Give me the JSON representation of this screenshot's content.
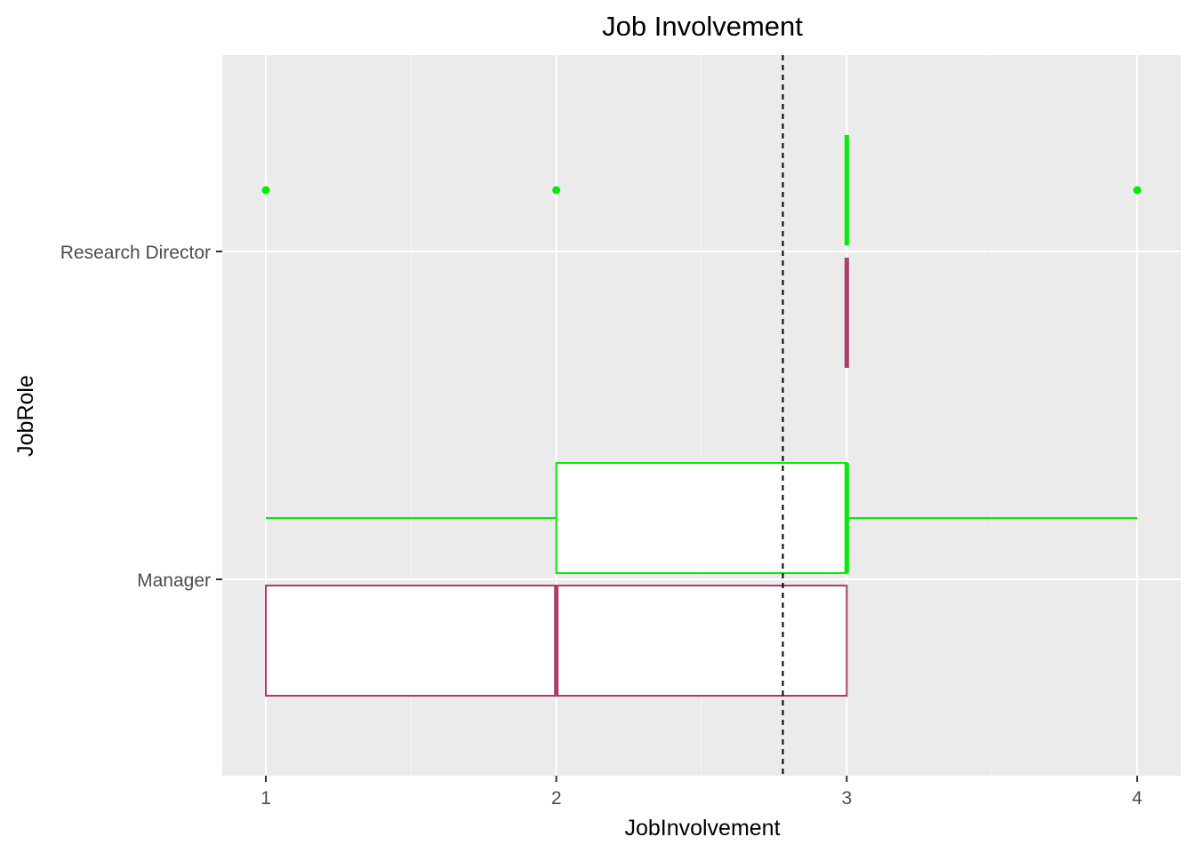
{
  "chart_data": {
    "type": "boxplot",
    "orientation": "horizontal",
    "title": "Job Involvement",
    "xlabel": "JobInvolvement",
    "ylabel": "JobRole",
    "xlim": [
      0.85,
      4.15
    ],
    "x_ticks": [
      "1",
      "2",
      "3",
      "4"
    ],
    "categories": [
      "Manager",
      "Research Director"
    ],
    "reference_line": {
      "x": 2.78,
      "style": "dashed",
      "color": "#000000"
    },
    "groups": [
      {
        "category": "Manager",
        "color": "#b03a6a",
        "offset": "lower",
        "stats": {
          "min": 1,
          "q1": 1,
          "median": 2,
          "q3": 3,
          "max": 3
        },
        "outliers": []
      },
      {
        "category": "Manager",
        "color": "#00ee00",
        "offset": "upper",
        "stats": {
          "min": 1,
          "q1": 2,
          "median": 3,
          "q3": 3,
          "max": 4
        },
        "outliers": []
      },
      {
        "category": "Research Director",
        "color": "#b03a6a",
        "offset": "lower",
        "stats": {
          "min": 3,
          "q1": 3,
          "median": 3,
          "q3": 3,
          "max": 3
        },
        "outliers": []
      },
      {
        "category": "Research Director",
        "color": "#00ee00",
        "offset": "upper",
        "stats": {
          "min": 3,
          "q1": 3,
          "median": 3,
          "q3": 3,
          "max": 3
        },
        "outliers": [
          1,
          2,
          4
        ]
      }
    ],
    "panel_background": "#ebebeb",
    "grid": true
  }
}
